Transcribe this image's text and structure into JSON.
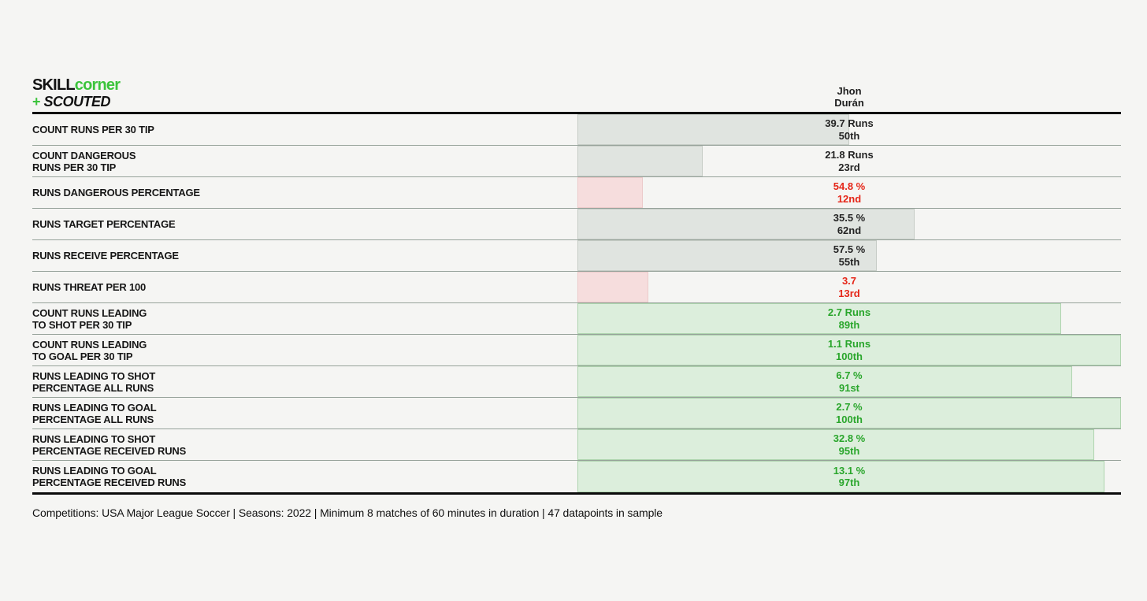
{
  "header": {
    "logo": {
      "skill": "SKILL",
      "corner": "corner",
      "plus": "+",
      "scouted": "SCOUTED"
    },
    "player": {
      "first_name": "Jhon",
      "last_name": "Durán"
    }
  },
  "colors": {
    "background": "#f5f5f3",
    "brand_green": "#3cc43c",
    "neutral_bar": "#e0e4e0",
    "neutral_text": "#242424",
    "bad_bar": "#f6dddd",
    "bad_text": "#e52618",
    "good_bar": "#dceedc",
    "good_text": "#2aa62c",
    "divider": "#96a29a",
    "rule_black": "#0b0b0b"
  },
  "chart_data": {
    "type": "bar",
    "orientation": "horizontal",
    "x_axis": "percentile",
    "xlim": [
      0,
      100
    ],
    "grid": false,
    "legend": "none",
    "title": "Jhon Durán — run metrics percentile bars (SkillCorner + Scouted)",
    "rows": [
      {
        "label": "COUNT RUNS PER 30 TIP",
        "value": "39.7 Runs",
        "percentile_label": "50th",
        "percentile": 50,
        "status": "neutral"
      },
      {
        "label": "COUNT DANGEROUS\nRUNS PER 30 TIP",
        "value": "21.8 Runs",
        "percentile_label": "23rd",
        "percentile": 23,
        "status": "neutral"
      },
      {
        "label": "RUNS DANGEROUS PERCENTAGE",
        "value": "54.8 %",
        "percentile_label": "12nd",
        "percentile": 12,
        "status": "bad"
      },
      {
        "label": "RUNS TARGET PERCENTAGE",
        "value": "35.5 %",
        "percentile_label": "62nd",
        "percentile": 62,
        "status": "neutral"
      },
      {
        "label": "RUNS RECEIVE PERCENTAGE",
        "value": "57.5 %",
        "percentile_label": "55th",
        "percentile": 55,
        "status": "neutral"
      },
      {
        "label": "RUNS THREAT PER 100",
        "value": "3.7",
        "percentile_label": "13rd",
        "percentile": 13,
        "status": "bad"
      },
      {
        "label": "COUNT RUNS LEADING\nTO SHOT PER 30 TIP",
        "value": "2.7 Runs",
        "percentile_label": "89th",
        "percentile": 89,
        "status": "good"
      },
      {
        "label": "COUNT RUNS LEADING\nTO GOAL PER 30 TIP",
        "value": "1.1 Runs",
        "percentile_label": "100th",
        "percentile": 100,
        "status": "good"
      },
      {
        "label": "RUNS LEADING TO SHOT\nPERCENTAGE ALL RUNS",
        "value": "6.7 %",
        "percentile_label": "91st",
        "percentile": 91,
        "status": "good"
      },
      {
        "label": "RUNS LEADING TO GOAL\nPERCENTAGE ALL RUNS",
        "value": "2.7 %",
        "percentile_label": "100th",
        "percentile": 100,
        "status": "good"
      },
      {
        "label": "RUNS LEADING TO SHOT\nPERCENTAGE RECEIVED RUNS",
        "value": "32.8 %",
        "percentile_label": "95th",
        "percentile": 95,
        "status": "good"
      },
      {
        "label": "RUNS LEADING TO GOAL\nPERCENTAGE RECEIVED RUNS",
        "value": "13.1 %",
        "percentile_label": "97th",
        "percentile": 97,
        "status": "good"
      }
    ]
  },
  "footer": {
    "text": "Competitions: USA Major League Soccer | Seasons: 2022 | Minimum 8 matches of 60 minutes in duration | 47 datapoints in sample"
  }
}
